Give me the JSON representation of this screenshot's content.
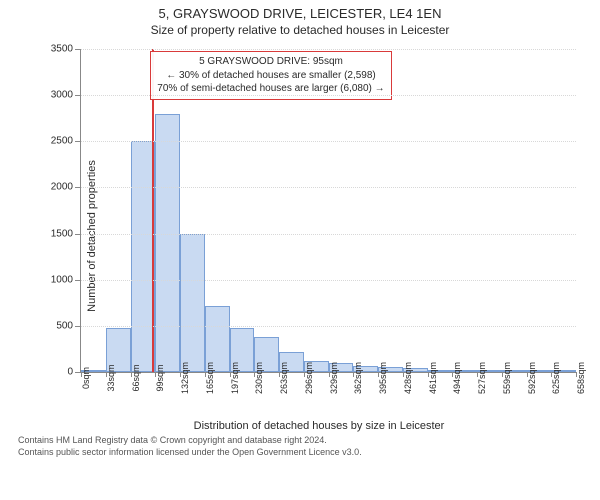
{
  "title": "5, GRAYSWOOD DRIVE, LEICESTER, LE4 1EN",
  "subtitle": "Size of property relative to detached houses in Leicester",
  "ylabel": "Number of detached properties",
  "xlabel": "Distribution of detached houses by size in Leicester",
  "chart": {
    "type": "histogram",
    "ylim": [
      0,
      3500
    ],
    "ytick_step": 500,
    "xtick_labels": [
      "0sqm",
      "33sqm",
      "66sqm",
      "99sqm",
      "132sqm",
      "165sqm",
      "197sqm",
      "230sqm",
      "263sqm",
      "296sqm",
      "329sqm",
      "362sqm",
      "395sqm",
      "428sqm",
      "461sqm",
      "494sqm",
      "527sqm",
      "559sqm",
      "592sqm",
      "625sqm",
      "658sqm"
    ],
    "bin_width": 33,
    "x_max": 658,
    "values": [
      0,
      480,
      2500,
      2800,
      1500,
      720,
      480,
      380,
      220,
      120,
      100,
      60,
      50,
      40,
      0,
      0,
      0,
      0,
      0,
      0
    ],
    "bar_fill": "#c9daf2",
    "bar_stroke": "#7aa0d6",
    "grid_color": "#d8d8d8",
    "axis_color": "#888888",
    "marker_x": 95,
    "marker_color": "#d93a3a"
  },
  "annotation": {
    "line1": "5 GRAYSWOOD DRIVE: 95sqm",
    "line2": "← 30% of detached houses are smaller (2,598)",
    "line3": "70% of semi-detached houses are larger (6,080) →",
    "border_color": "#d93a3a"
  },
  "footer": {
    "line1": "Contains HM Land Registry data © Crown copyright and database right 2024.",
    "line2": "Contains public sector information licensed under the Open Government Licence v3.0."
  }
}
